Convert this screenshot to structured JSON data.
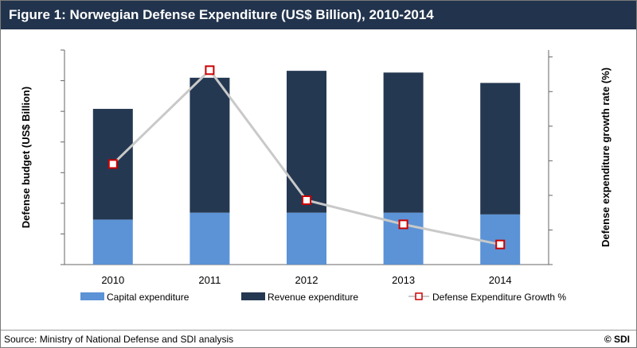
{
  "header": {
    "title": "Figure 1: Norwegian Defense Expenditure (US$ Billion), 2010-2014"
  },
  "footer": {
    "source": "Source: Ministry of National Defense and SDI analysis",
    "copyright": "© SDI"
  },
  "colors": {
    "header_bg": "#22344d",
    "capital": "#5b93d6",
    "revenue": "#253852",
    "growth_line": "#c9c9c9",
    "growth_marker": "#cc0000"
  },
  "chart_data": {
    "type": "bar",
    "stacked": true,
    "categories": [
      "2010",
      "2011",
      "2012",
      "2013",
      "2014"
    ],
    "series": [
      {
        "name": "Capital expenditure",
        "values": [
          1.3,
          1.5,
          1.5,
          1.5,
          1.45
        ]
      },
      {
        "name": "Revenue expenditure",
        "values": [
          3.2,
          3.9,
          4.1,
          4.05,
          3.8
        ]
      }
    ],
    "line_series": {
      "name": "Defense Expenditure Growth %",
      "values": [
        5.5,
        12.5,
        2.8,
        1.0,
        -0.5
      ]
    },
    "ylabel": "Defense budget (US$ Billion)",
    "y2label": "Defense expenditure growth rate (%)",
    "ylim": [
      0,
      6.2
    ],
    "y2lim": [
      -2,
      14
    ],
    "legend_position": "bottom",
    "grid": false
  }
}
